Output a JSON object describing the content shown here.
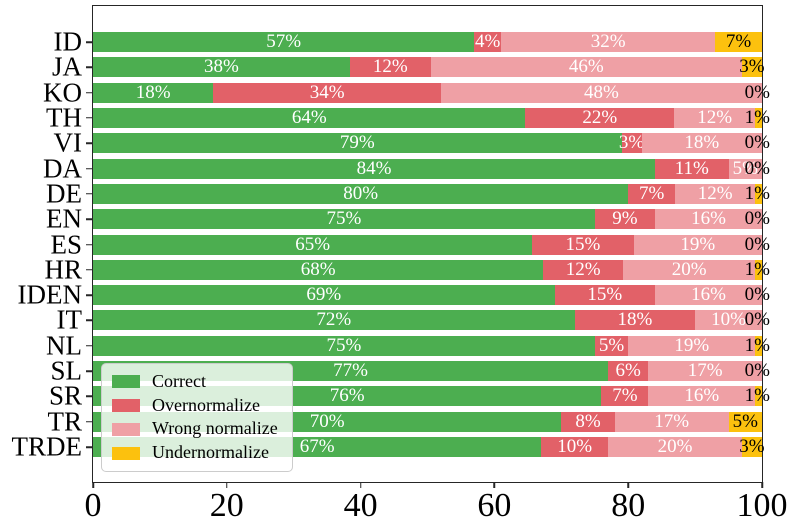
{
  "chart_data": {
    "type": "bar",
    "orientation": "horizontal",
    "stacked": true,
    "title": "",
    "xlabel": "",
    "ylabel": "",
    "xlim": [
      0,
      100
    ],
    "x_ticks": [
      0,
      20,
      40,
      60,
      80,
      100
    ],
    "grid": false,
    "legend_position": "lower left",
    "value_label_suffix": "%",
    "categories": [
      "ID",
      "JA",
      "KO",
      "TH",
      "VI",
      "DA",
      "DE",
      "EN",
      "ES",
      "HR",
      "IDEN",
      "IT",
      "NL",
      "SL",
      "SR",
      "TR",
      "TRDE"
    ],
    "series": [
      {
        "name": "Correct",
        "color": "#4cae50",
        "values": [
          57,
          38,
          18,
          64,
          79,
          84,
          80,
          75,
          65,
          68,
          69,
          72,
          75,
          77,
          76,
          70,
          67
        ]
      },
      {
        "name": "Overnormalize",
        "color": "#e26168",
        "values": [
          4,
          12,
          34,
          22,
          3,
          11,
          7,
          9,
          15,
          12,
          15,
          18,
          5,
          6,
          7,
          8,
          10
        ]
      },
      {
        "name": "Wrong normalize",
        "color": "#efa0a5",
        "values": [
          32,
          46,
          48,
          12,
          18,
          5,
          12,
          16,
          19,
          20,
          16,
          10,
          19,
          17,
          16,
          17,
          20
        ]
      },
      {
        "name": "Undernormalize",
        "color": "#fcc10e",
        "values": [
          7,
          3,
          0,
          1,
          0,
          0,
          1,
          0,
          0,
          1,
          0,
          0,
          1,
          0,
          1,
          5,
          3
        ]
      }
    ]
  },
  "style_colors": {
    "spine": "#262626",
    "bar_label_white": "#ffffff",
    "bar_label_black": "#000000",
    "legend_background": "rgba(255,255,255,0.8)",
    "legend_border": "#cccccc"
  }
}
